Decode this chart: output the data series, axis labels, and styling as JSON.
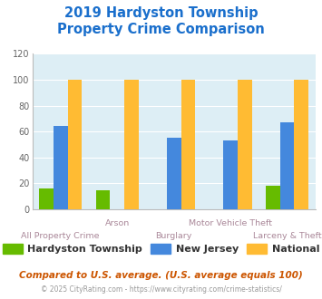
{
  "title_line1": "2019 Hardyston Township",
  "title_line2": "Property Crime Comparison",
  "title_color": "#1a6fcc",
  "categories": [
    "All Property Crime",
    "Arson",
    "Burglary",
    "Motor Vehicle Theft",
    "Larceny & Theft"
  ],
  "hardyston": [
    16,
    15,
    0,
    0,
    18
  ],
  "new_jersey": [
    64,
    0,
    55,
    53,
    67
  ],
  "national": [
    100,
    100,
    100,
    100,
    100
  ],
  "colors": {
    "hardyston": "#66bb00",
    "new_jersey": "#4488dd",
    "national": "#ffbb33"
  },
  "ylim": [
    0,
    120
  ],
  "yticks": [
    0,
    20,
    40,
    60,
    80,
    100,
    120
  ],
  "background_color": "#ddeef5",
  "legend_labels": [
    "Hardyston Township",
    "New Jersey",
    "National"
  ],
  "note_text": "Compared to U.S. average. (U.S. average equals 100)",
  "footer_text": "© 2025 CityRating.com - https://www.cityrating.com/crime-statistics/",
  "note_color": "#cc5500",
  "footer_color": "#999999",
  "bar_width": 0.25,
  "label_color": "#aa8899"
}
